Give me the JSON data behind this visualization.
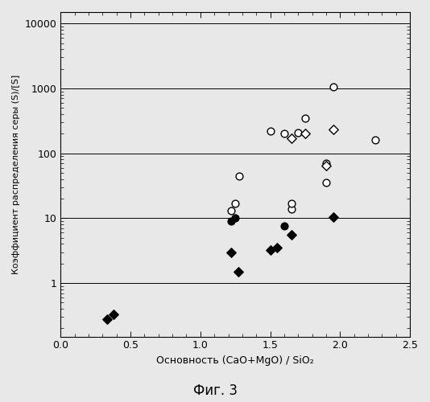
{
  "title": "",
  "xlabel": "Основность (CaO+MgO) / SiO₂",
  "ylabel": "Коэффициент распределения серы (S)/[S]",
  "caption": "Фиг. 3",
  "xlim": [
    0.0,
    2.5
  ],
  "ylim_log": [
    0.15,
    15000
  ],
  "xticks": [
    0.0,
    0.5,
    1.0,
    1.5,
    2.0,
    2.5
  ],
  "yticks": [
    1,
    10,
    100,
    1000,
    10000
  ],
  "ytick_labels": [
    "1",
    "10",
    "100",
    "1000",
    "10000"
  ],
  "open_circles": [
    [
      1.22,
      13.0
    ],
    [
      1.25,
      17.0
    ],
    [
      1.28,
      45.0
    ],
    [
      1.5,
      220.0
    ],
    [
      1.6,
      200.0
    ],
    [
      1.65,
      14.0
    ],
    [
      1.65,
      17.0
    ],
    [
      1.7,
      210.0
    ],
    [
      1.75,
      350.0
    ],
    [
      1.9,
      70.0
    ],
    [
      1.9,
      35.0
    ],
    [
      1.95,
      1050.0
    ],
    [
      2.25,
      160.0
    ]
  ],
  "open_diamonds": [
    [
      1.65,
      170.0
    ],
    [
      1.75,
      200.0
    ],
    [
      1.9,
      65.0
    ],
    [
      1.95,
      230.0
    ]
  ],
  "filled_circles": [
    [
      1.22,
      9.0
    ],
    [
      1.25,
      10.0
    ],
    [
      1.6,
      7.5
    ]
  ],
  "filled_diamonds": [
    [
      0.33,
      0.28
    ],
    [
      0.38,
      0.33
    ],
    [
      1.22,
      3.0
    ],
    [
      1.27,
      1.5
    ],
    [
      1.5,
      3.2
    ],
    [
      1.55,
      3.5
    ],
    [
      1.65,
      5.5
    ],
    [
      1.95,
      10.5
    ]
  ],
  "bg_color": "#e8e8e8",
  "marker_size": 40,
  "linewidth": 1.0
}
